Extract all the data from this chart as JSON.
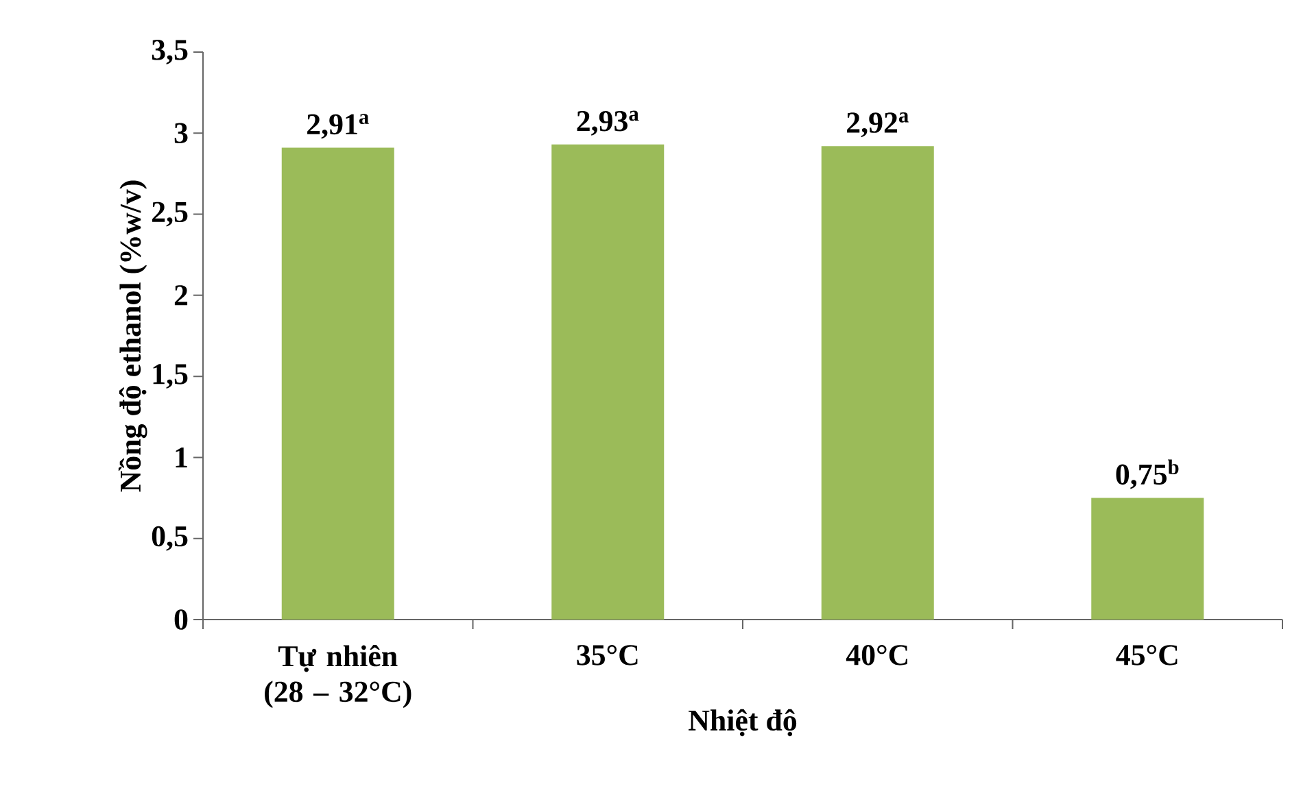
{
  "chart_data": {
    "type": "bar",
    "xlabel": "Nhiệt độ",
    "ylabel": "Nồng độ ethanol (%w/v)",
    "categories": [
      "Tự nhiên (28 – 32°C)",
      "35°C",
      "40°C",
      "45°C"
    ],
    "values": [
      2.91,
      2.93,
      2.92,
      0.75
    ],
    "color": "#9bbb59",
    "value_labels": [
      "2,91$^{a}$",
      "2,93$^{a}$",
      "2,92$^{a}$",
      "0,75$^{b}$"
    ],
    "ylim": [
      0,
      3.5
    ],
    "yticks": [
      {
        "value": 0,
        "label": "0"
      },
      {
        "value": 0.5,
        "label": "0,5"
      },
      {
        "value": 1,
        "label": "1"
      },
      {
        "value": 1.5,
        "label": "1,5"
      },
      {
        "value": 2,
        "label": "2"
      },
      {
        "value": 2.5,
        "label": "2,5"
      },
      {
        "value": 3,
        "label": "3"
      },
      {
        "value": 3.5,
        "label": "3,5"
      }
    ],
    "grid": false
  }
}
